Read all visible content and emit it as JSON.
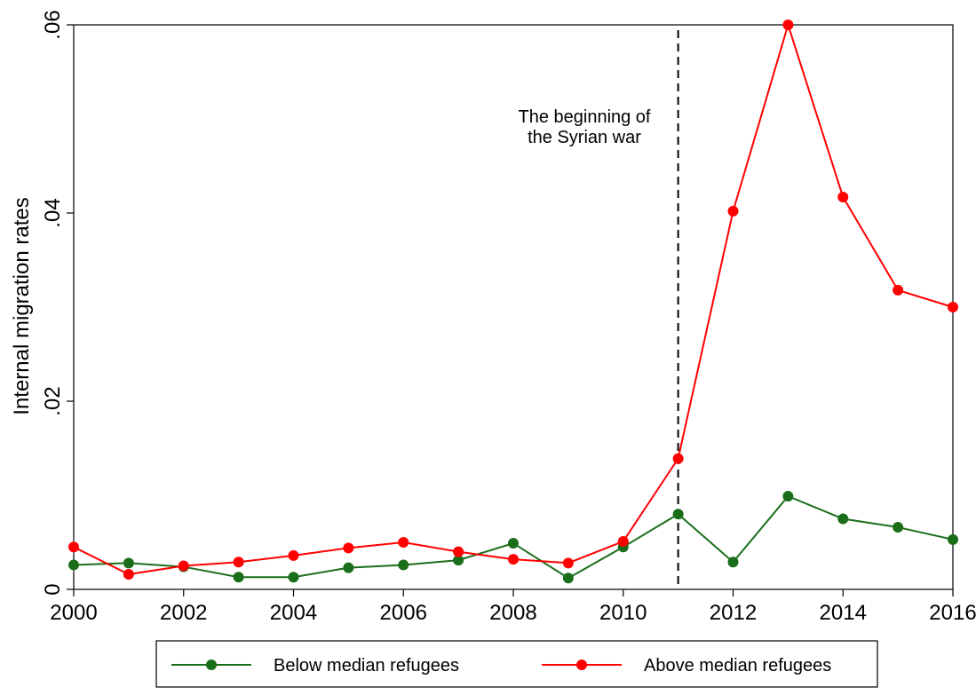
{
  "chart_data": {
    "type": "line",
    "xlabel": "",
    "ylabel": "Internal migration rates",
    "xlim": [
      2000,
      2016
    ],
    "ylim": [
      0,
      0.06
    ],
    "x_ticks": [
      2000,
      2002,
      2004,
      2006,
      2008,
      2010,
      2012,
      2014,
      2016
    ],
    "x_tick_labels": [
      "2000",
      "2002",
      "2004",
      "2006",
      "2008",
      "2010",
      "2012",
      "2014",
      "2016"
    ],
    "y_ticks": [
      0,
      0.02,
      0.04,
      0.06
    ],
    "y_tick_labels": [
      "0",
      ".02",
      ".04",
      ".06"
    ],
    "grid": false,
    "legend_position": "bottom",
    "x": [
      2000,
      2001,
      2002,
      2003,
      2004,
      2005,
      2006,
      2007,
      2008,
      2009,
      2010,
      2011,
      2012,
      2013,
      2014,
      2015,
      2016
    ],
    "series": [
      {
        "name": "Below median refugees",
        "color": "#1a6e1a",
        "values": [
          0.0026,
          0.0028,
          0.0024,
          0.0013,
          0.0013,
          0.0023,
          0.0026,
          0.0031,
          0.0049,
          0.0012,
          0.0045,
          0.008,
          0.0029,
          0.0099,
          0.0075,
          0.0066,
          0.0053
        ]
      },
      {
        "name": "Above median refugees",
        "color": "#ff0000",
        "values": [
          0.0045,
          0.0016,
          0.0025,
          0.0029,
          0.0036,
          0.0044,
          0.005,
          0.004,
          0.0032,
          0.0028,
          0.0051,
          0.0139,
          0.0402,
          0.06,
          0.0417,
          0.0318,
          0.03
        ]
      }
    ],
    "vline": {
      "x": 2011,
      "style": "dashed",
      "color": "#000000"
    },
    "annotation": {
      "line1": "The beginning of",
      "line2": "the Syrian war"
    }
  }
}
